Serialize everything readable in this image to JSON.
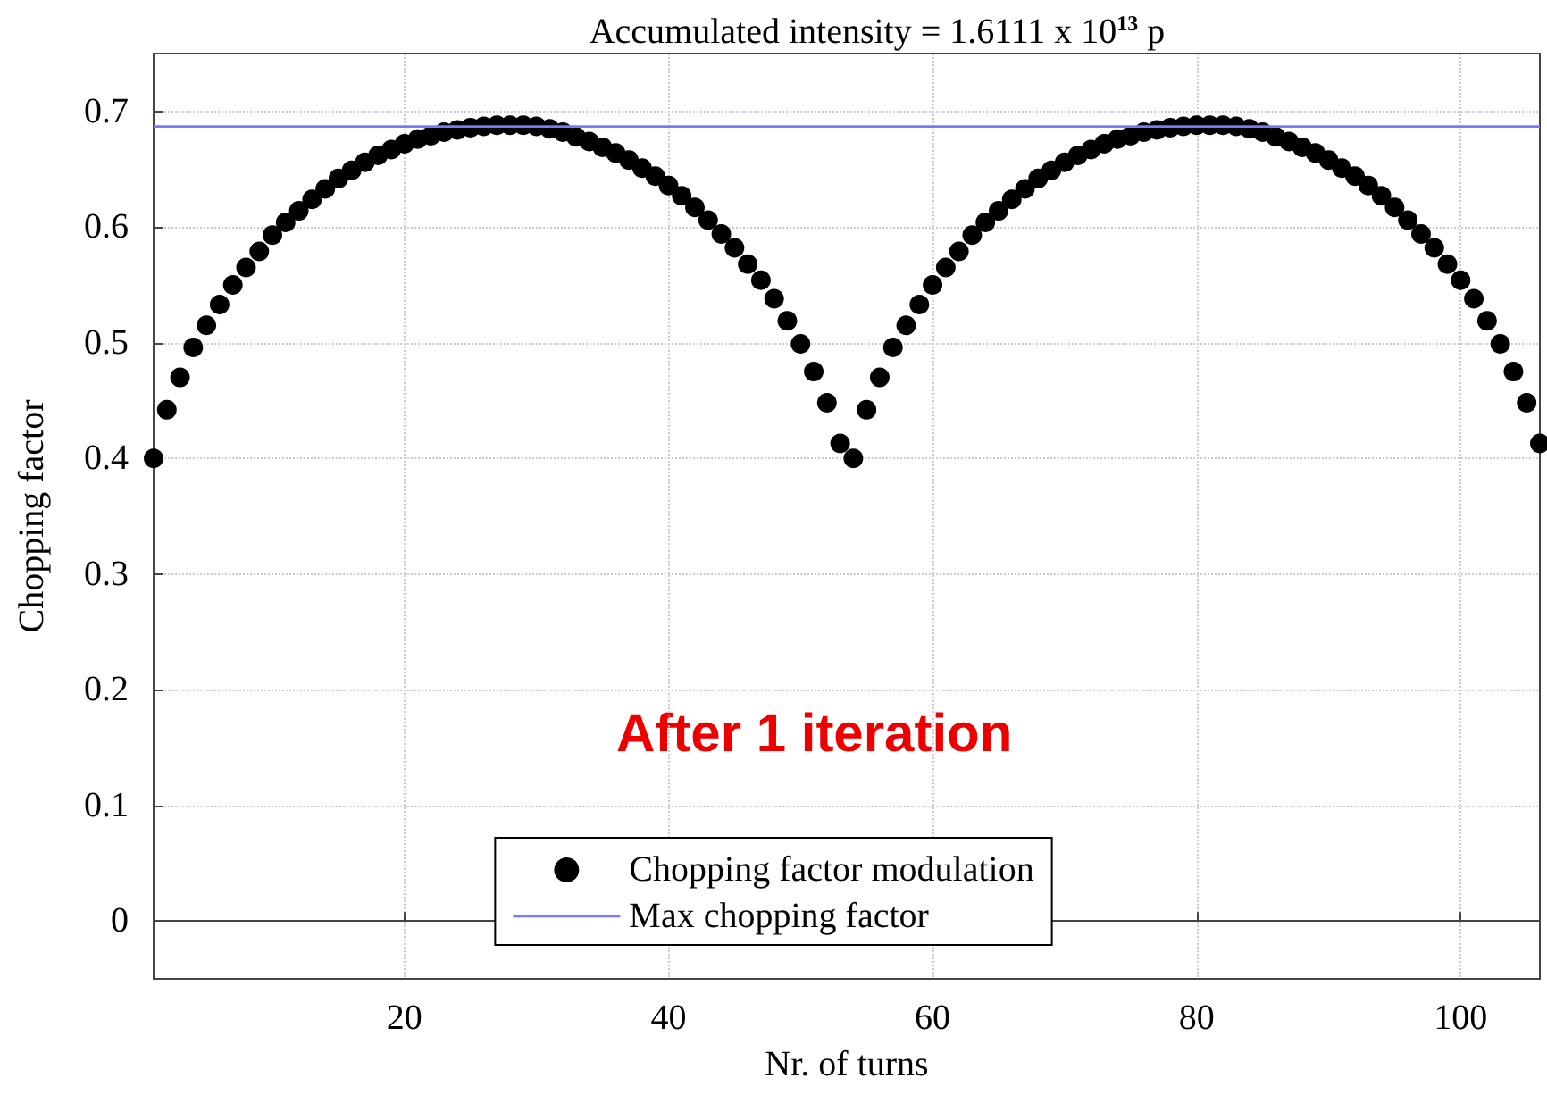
{
  "chart_data": {
    "type": "scatter",
    "title": "Accumulated intensity = 1.6111 x 10$^{13}$ p",
    "xlabel": "Nr. of turns",
    "ylabel": "Chopping factor",
    "annotations": [
      "After 1 iteration"
    ],
    "x": [
      1,
      2,
      3,
      4,
      5,
      6,
      7,
      8,
      9,
      10,
      11,
      12,
      13,
      14,
      15,
      16,
      17,
      18,
      19,
      20,
      21,
      22,
      23,
      24,
      25,
      26,
      27,
      28,
      29,
      30,
      31,
      32,
      33,
      34,
      35,
      36,
      37,
      38,
      39,
      40,
      41,
      42,
      43,
      44,
      45,
      46,
      47,
      48,
      49,
      50,
      51,
      52,
      53,
      54,
      55,
      56,
      57,
      58,
      59,
      60,
      61,
      62,
      63,
      64,
      65,
      66,
      67,
      68,
      69,
      70,
      71,
      72,
      73,
      74,
      75,
      76,
      77,
      78,
      79,
      80,
      81,
      82,
      83,
      84,
      85,
      86,
      87,
      88,
      89,
      90,
      91,
      92,
      93,
      94,
      95,
      96,
      97,
      98,
      99,
      100,
      101,
      102,
      103,
      104,
      105,
      106
    ],
    "series": [
      {
        "name": "Chopping factor modulation",
        "color": "#000000",
        "marker": "circle",
        "values": [
          0.4,
          0.442,
          0.47,
          0.496,
          0.515,
          0.533,
          0.55,
          0.565,
          0.579,
          0.593,
          0.604,
          0.614,
          0.624,
          0.633,
          0.642,
          0.649,
          0.656,
          0.662,
          0.667,
          0.672,
          0.676,
          0.679,
          0.682,
          0.684,
          0.686,
          0.687,
          0.688,
          0.688,
          0.688,
          0.687,
          0.685,
          0.682,
          0.678,
          0.674,
          0.669,
          0.664,
          0.658,
          0.651,
          0.644,
          0.636,
          0.627,
          0.617,
          0.606,
          0.594,
          0.582,
          0.568,
          0.554,
          0.538,
          0.519,
          0.499,
          0.475,
          0.448,
          0.413,
          0.4,
          0.442,
          0.47,
          0.496,
          0.515,
          0.533,
          0.55,
          0.565,
          0.579,
          0.593,
          0.604,
          0.614,
          0.624,
          0.633,
          0.642,
          0.649,
          0.656,
          0.662,
          0.667,
          0.672,
          0.676,
          0.679,
          0.682,
          0.684,
          0.686,
          0.687,
          0.688,
          0.688,
          0.688,
          0.687,
          0.685,
          0.682,
          0.678,
          0.674,
          0.669,
          0.664,
          0.658,
          0.651,
          0.644,
          0.636,
          0.627,
          0.617,
          0.606,
          0.594,
          0.582,
          0.568,
          0.554,
          0.538,
          0.519,
          0.499,
          0.475,
          0.448,
          0.413
        ]
      },
      {
        "name": "Max chopping factor",
        "type": "line",
        "color": "#7777ff",
        "marker": "none",
        "line_style": "solid",
        "x": [
          1,
          106
        ],
        "values": [
          0.687,
          0.687
        ]
      }
    ],
    "xlim": [
      1,
      106
    ],
    "xticks": [
      20,
      40,
      60,
      80,
      100
    ],
    "ylim": [
      -0.05,
      0.75
    ],
    "yticks": [
      0,
      0.1,
      0.2,
      0.3,
      0.4,
      0.5,
      0.6,
      0.7
    ],
    "grid": true,
    "legend": "bottom"
  }
}
